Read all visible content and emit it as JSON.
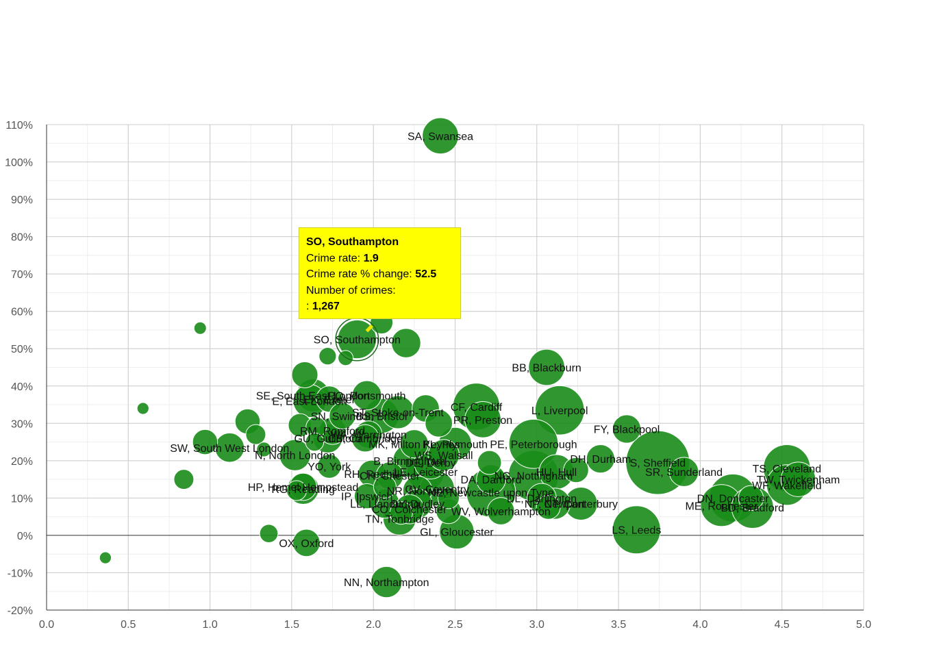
{
  "chart_data": {
    "type": "scatter",
    "title": "",
    "xlabel": "",
    "ylabel": "",
    "xlim": [
      0.0,
      5.0
    ],
    "ylim": [
      -20,
      110
    ],
    "x_ticks": [
      "0.0",
      "0.5",
      "1.0",
      "1.5",
      "2.0",
      "2.5",
      "3.0",
      "3.5",
      "4.0",
      "4.5",
      "5.0"
    ],
    "y_ticks": [
      "110%",
      "100%",
      "90%",
      "80%",
      "70%",
      "60%",
      "50%",
      "40%",
      "30%",
      "20%",
      "10%",
      "0%",
      "-10%",
      "-20%"
    ],
    "grid": true,
    "marker_color": "#1a8c1a",
    "points": [
      {
        "label": "SA, Swansea",
        "x": 2.41,
        "y": 107,
        "size": 1100
      },
      {
        "label": "SO, Southampton",
        "x": 1.9,
        "y": 52.5,
        "size": 1267
      },
      {
        "label": "",
        "x": 2.05,
        "y": 57,
        "size": 400
      },
      {
        "label": "",
        "x": 2.2,
        "y": 51.5,
        "size": 700
      },
      {
        "label": "",
        "x": 0.94,
        "y": 55.5,
        "size": 100
      },
      {
        "label": "",
        "x": 1.72,
        "y": 48,
        "size": 220
      },
      {
        "label": "",
        "x": 1.83,
        "y": 47.5,
        "size": 160
      },
      {
        "label": "BB, Blackburn",
        "x": 3.06,
        "y": 45,
        "size": 1100
      },
      {
        "label": "",
        "x": 1.58,
        "y": 43,
        "size": 550
      },
      {
        "label": "SE, South East London",
        "x": 1.63,
        "y": 37.5,
        "size": 900
      },
      {
        "label": "E, East London",
        "x": 1.61,
        "y": 36,
        "size": 900
      },
      {
        "label": "EX, Exeter",
        "x": 1.73,
        "y": 36.5,
        "size": 550
      },
      {
        "label": "PO, Portsmouth",
        "x": 1.96,
        "y": 37.5,
        "size": 700
      },
      {
        "label": "",
        "x": 0.59,
        "y": 34,
        "size": 90
      },
      {
        "label": "CF, Cardiff",
        "x": 2.63,
        "y": 34.5,
        "size": 1900
      },
      {
        "label": "L, Liverpool",
        "x": 3.14,
        "y": 33.5,
        "size": 2100
      },
      {
        "label": "",
        "x": 2.32,
        "y": 34,
        "size": 600
      },
      {
        "label": "ST, Stoke-on-Trent",
        "x": 2.15,
        "y": 33,
        "size": 900
      },
      {
        "label": "SN, Swindon",
        "x": 1.81,
        "y": 32,
        "size": 550
      },
      {
        "label": "BS, Bristol",
        "x": 2.05,
        "y": 32,
        "size": 1000
      },
      {
        "label": "",
        "x": 1.23,
        "y": 30.5,
        "size": 500
      },
      {
        "label": "PR, Preston",
        "x": 2.67,
        "y": 31,
        "size": 1100
      },
      {
        "label": "",
        "x": 2.4,
        "y": 30,
        "size": 600
      },
      {
        "label": "",
        "x": 1.55,
        "y": 29.5,
        "size": 420
      },
      {
        "label": "",
        "x": 1.65,
        "y": 29,
        "size": 320
      },
      {
        "label": "RM, Romford",
        "x": 1.75,
        "y": 28,
        "size": 600
      },
      {
        "label": "FY, Blackpool",
        "x": 3.55,
        "y": 28.5,
        "size": 650
      },
      {
        "label": "WA, Warrington",
        "x": 1.97,
        "y": 27,
        "size": 600
      },
      {
        "label": "",
        "x": 1.28,
        "y": 27,
        "size": 300
      },
      {
        "label": "GU, Guildford",
        "x": 1.72,
        "y": 26,
        "size": 700
      },
      {
        "label": "CB, Cambridge",
        "x": 1.95,
        "y": 26,
        "size": 600
      },
      {
        "label": "",
        "x": 1.64,
        "y": 25,
        "size": 250
      },
      {
        "label": "",
        "x": 0.97,
        "y": 25,
        "size": 500
      },
      {
        "label": "PE, Peterborough",
        "x": 2.98,
        "y": 24.5,
        "size": 2100
      },
      {
        "label": "MK, Milton Keynes",
        "x": 2.25,
        "y": 24.5,
        "size": 650
      },
      {
        "label": "PL, Plymouth",
        "x": 2.5,
        "y": 24.5,
        "size": 900
      },
      {
        "label": "SW, South West London",
        "x": 1.12,
        "y": 23.5,
        "size": 700
      },
      {
        "label": "",
        "x": 1.33,
        "y": 23,
        "size": 150
      },
      {
        "label": "N, North London",
        "x": 1.52,
        "y": 21.5,
        "size": 800
      },
      {
        "label": "WS, Walsall",
        "x": 2.43,
        "y": 21.5,
        "size": 800
      },
      {
        "label": "DH, Durham",
        "x": 3.39,
        "y": 20.5,
        "size": 650
      },
      {
        "label": "B, Birmingham",
        "x": 2.22,
        "y": 20,
        "size": 900
      },
      {
        "label": "DE, Derby",
        "x": 2.35,
        "y": 19.5,
        "size": 900
      },
      {
        "label": "",
        "x": 2.71,
        "y": 19.5,
        "size": 450
      },
      {
        "label": "S, Sheffield",
        "x": 3.74,
        "y": 19.5,
        "size": 3600
      },
      {
        "label": "TS, Cleveland",
        "x": 4.53,
        "y": 18,
        "size": 1900
      },
      {
        "label": "YO, York",
        "x": 1.73,
        "y": 18.5,
        "size": 450
      },
      {
        "label": "SR, Sunderland",
        "x": 3.9,
        "y": 17,
        "size": 700
      },
      {
        "label": "HU, Hull",
        "x": 3.12,
        "y": 17,
        "size": 1000
      },
      {
        "label": "",
        "x": 3.24,
        "y": 17.5,
        "size": 500
      },
      {
        "label": "LE, Leicester",
        "x": 2.32,
        "y": 17,
        "size": 1200
      },
      {
        "label": "RH, Redhill",
        "x": 1.99,
        "y": 16.5,
        "size": 600
      },
      {
        "label": "CH, Chester",
        "x": 2.1,
        "y": 16,
        "size": 600
      },
      {
        "label": "NG, Nottingham",
        "x": 2.98,
        "y": 16,
        "size": 2200
      },
      {
        "label": "TW, Twickenham",
        "x": 4.6,
        "y": 15,
        "size": 1000
      },
      {
        "label": "",
        "x": 0.84,
        "y": 15,
        "size": 300
      },
      {
        "label": "DA, Dartford",
        "x": 2.72,
        "y": 15,
        "size": 700
      },
      {
        "label": "WF, Wakefield",
        "x": 4.53,
        "y": 13.5,
        "size": 1400
      },
      {
        "label": "HP, Hemel Hempstead",
        "x": 1.57,
        "y": 13,
        "size": 600
      },
      {
        "label": "",
        "x": 2.07,
        "y": 13,
        "size": 400
      },
      {
        "label": "RG, Reading",
        "x": 1.57,
        "y": 12.5,
        "size": 800
      },
      {
        "label": "",
        "x": 1.53,
        "y": 12,
        "size": 300
      },
      {
        "label": "CV, Coventry",
        "x": 2.39,
        "y": 12.5,
        "size": 1000
      },
      {
        "label": "NR, Norwich",
        "x": 2.27,
        "y": 12,
        "size": 700
      },
      {
        "label": "NE, Newcastle upon Tyne",
        "x": 2.72,
        "y": 11.5,
        "size": 2100
      },
      {
        "label": "IP, Ipswich",
        "x": 1.96,
        "y": 10.5,
        "size": 500
      },
      {
        "label": "DL, Darlington",
        "x": 3.03,
        "y": 10,
        "size": 700
      },
      {
        "label": "",
        "x": 2.46,
        "y": 10,
        "size": 350
      },
      {
        "label": "DN, Doncaster",
        "x": 4.2,
        "y": 10,
        "size": 2000
      },
      {
        "label": "",
        "x": 4.31,
        "y": 10,
        "size": 500
      },
      {
        "label": "LL, Llandudno",
        "x": 2.07,
        "y": 8.5,
        "size": 700
      },
      {
        "label": "DY, Dudley",
        "x": 2.27,
        "y": 8.5,
        "size": 700
      },
      {
        "label": "NP, Newport",
        "x": 3.11,
        "y": 8.5,
        "size": 800
      },
      {
        "label": "CT, Canterbury",
        "x": 3.27,
        "y": 8.5,
        "size": 900
      },
      {
        "label": "ME, Rochester",
        "x": 4.13,
        "y": 8,
        "size": 1500
      },
      {
        "label": "BD, Bradford",
        "x": 4.32,
        "y": 7.5,
        "size": 1500
      },
      {
        "label": "",
        "x": 3.07,
        "y": 7.5,
        "size": 450
      },
      {
        "label": "CO, Colchester",
        "x": 2.22,
        "y": 7,
        "size": 700
      },
      {
        "label": "",
        "x": 2.46,
        "y": 6.5,
        "size": 500
      },
      {
        "label": "WV, Wolverhampton",
        "x": 2.78,
        "y": 6.5,
        "size": 600
      },
      {
        "label": "",
        "x": 2.17,
        "y": 6,
        "size": 400
      },
      {
        "label": "TN, Tonbridge",
        "x": 2.16,
        "y": 4.5,
        "size": 900
      },
      {
        "label": "LS, Leeds",
        "x": 3.61,
        "y": 1.5,
        "size": 2000
      },
      {
        "label": "GL, Gloucester",
        "x": 2.51,
        "y": 1,
        "size": 1000
      },
      {
        "label": "",
        "x": 1.36,
        "y": 0.5,
        "size": 250
      },
      {
        "label": "OX, Oxford",
        "x": 1.59,
        "y": -2,
        "size": 600
      },
      {
        "label": "",
        "x": 0.36,
        "y": -6,
        "size": 90
      },
      {
        "label": "NN, Northampton",
        "x": 2.08,
        "y": -12.5,
        "size": 800
      }
    ]
  },
  "tooltip": {
    "title": "SO, Southampton",
    "crime_rate_label": "Crime rate: ",
    "crime_rate_value": "1.9",
    "change_label": "Crime rate % change: ",
    "change_value": "52.5",
    "count_label": "Number of crimes:",
    "count_prefix": ": ",
    "count_value": "1,267"
  }
}
